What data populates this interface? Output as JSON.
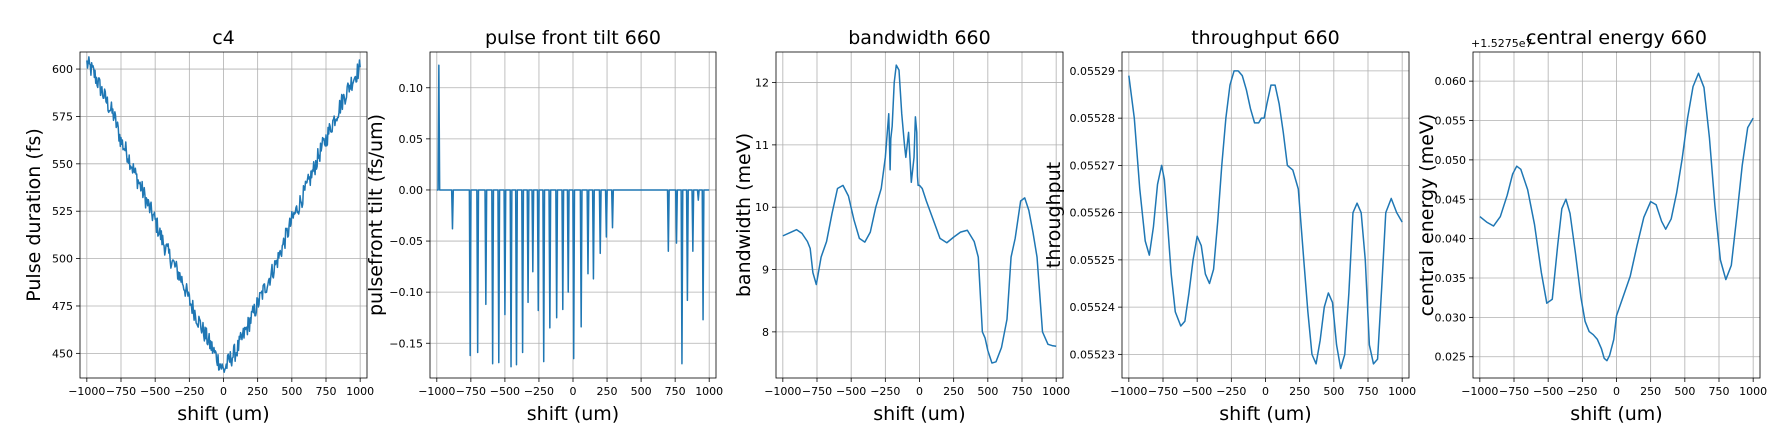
{
  "series_color": "#1f77b4",
  "grid": true,
  "chart_data": [
    {
      "type": "line",
      "title": "c4",
      "xlabel": "shift (um)",
      "ylabel": "Pulse duration (fs)",
      "xlim": [
        -1050,
        1050
      ],
      "ylim": [
        437,
        609
      ],
      "xticks": [
        -1000,
        -750,
        -500,
        -250,
        0,
        250,
        500,
        750,
        1000
      ],
      "xtick_labels": [
        "−1000",
        "−750",
        "−500",
        "−250",
        "0",
        "250",
        "500",
        "750",
        "1000"
      ],
      "yticks": [
        450,
        475,
        500,
        525,
        550,
        575,
        600
      ],
      "ytick_labels": [
        "450",
        "475",
        "500",
        "525",
        "550",
        "575",
        "600"
      ],
      "x": [
        -1000,
        -950,
        -900,
        -850,
        -800,
        -750,
        -700,
        -650,
        -600,
        -550,
        -500,
        -450,
        -400,
        -350,
        -300,
        -250,
        -200,
        -150,
        -100,
        -50,
        0,
        50,
        100,
        150,
        200,
        250,
        300,
        350,
        400,
        450,
        500,
        550,
        600,
        650,
        700,
        750,
        800,
        850,
        900,
        950,
        1000
      ],
      "y": [
        603,
        598,
        590,
        582,
        575,
        562,
        555,
        545,
        537,
        528,
        520,
        510,
        502,
        495,
        488,
        478,
        470,
        462,
        455,
        448,
        441,
        447,
        452,
        460,
        468,
        476,
        484,
        492,
        500,
        510,
        520,
        528,
        536,
        545,
        555,
        563,
        572,
        580,
        588,
        595,
        601
      ],
      "noise": 5
    },
    {
      "type": "line",
      "title": "pulse front tilt 660",
      "xlabel": "shift (um)",
      "ylabel": "pulsefront tilt (fs/um)",
      "xlim": [
        -1050,
        1050
      ],
      "ylim": [
        -0.184,
        0.135
      ],
      "xticks": [
        -1000,
        -750,
        -500,
        -250,
        0,
        250,
        500,
        750,
        1000
      ],
      "xtick_labels": [
        "−1000",
        "−750",
        "−500",
        "−250",
        "0",
        "250",
        "500",
        "750",
        "1000"
      ],
      "yticks": [
        -0.15,
        -0.1,
        -0.05,
        0.0,
        0.05,
        0.1
      ],
      "ytick_labels": [
        "−0.15",
        "−0.10",
        "−0.05",
        "0.00",
        "0.05",
        "0.10"
      ],
      "baseline": 0.0,
      "spikes": [
        {
          "x": -985,
          "y": 0.122
        },
        {
          "x": -885,
          "y": -0.038
        },
        {
          "x": -755,
          "y": -0.162
        },
        {
          "x": -700,
          "y": -0.159
        },
        {
          "x": -640,
          "y": -0.112
        },
        {
          "x": -590,
          "y": -0.17
        },
        {
          "x": -545,
          "y": -0.169
        },
        {
          "x": -500,
          "y": -0.122
        },
        {
          "x": -455,
          "y": -0.173
        },
        {
          "x": -415,
          "y": -0.171
        },
        {
          "x": -370,
          "y": -0.159
        },
        {
          "x": -330,
          "y": -0.11
        },
        {
          "x": -295,
          "y": -0.08
        },
        {
          "x": -255,
          "y": -0.118
        },
        {
          "x": -215,
          "y": -0.168
        },
        {
          "x": -170,
          "y": -0.135
        },
        {
          "x": -120,
          "y": -0.125
        },
        {
          "x": -75,
          "y": -0.117
        },
        {
          "x": -35,
          "y": -0.1
        },
        {
          "x": 5,
          "y": -0.165
        },
        {
          "x": 60,
          "y": -0.134
        },
        {
          "x": 110,
          "y": -0.082
        },
        {
          "x": 150,
          "y": -0.087
        },
        {
          "x": 200,
          "y": -0.062
        },
        {
          "x": 245,
          "y": -0.046
        },
        {
          "x": 290,
          "y": -0.037
        },
        {
          "x": 700,
          "y": -0.06
        },
        {
          "x": 760,
          "y": -0.052
        },
        {
          "x": 800,
          "y": -0.17
        },
        {
          "x": 840,
          "y": -0.108
        },
        {
          "x": 880,
          "y": -0.06
        },
        {
          "x": 920,
          "y": -0.01
        },
        {
          "x": 955,
          "y": -0.127
        }
      ],
      "x_end": [
        -1000,
        1000
      ]
    },
    {
      "type": "line",
      "title": "bandwidth 660",
      "xlabel": "shift (um)",
      "ylabel": "bandwidth (meV)",
      "xlim": [
        -1050,
        1050
      ],
      "ylim": [
        7.26,
        12.49
      ],
      "xticks": [
        -1000,
        -750,
        -500,
        -250,
        0,
        250,
        500,
        750,
        1000
      ],
      "xtick_labels": [
        "−1000",
        "−750",
        "−500",
        "−250",
        "0",
        "250",
        "500",
        "750",
        "1000"
      ],
      "yticks": [
        8,
        9,
        10,
        11,
        12
      ],
      "ytick_labels": [
        "8",
        "9",
        "10",
        "11",
        "12"
      ],
      "x": [
        -1000,
        -940,
        -900,
        -860,
        -820,
        -800,
        -780,
        -755,
        -720,
        -680,
        -640,
        -600,
        -560,
        -520,
        -480,
        -440,
        -400,
        -360,
        -320,
        -280,
        -250,
        -225,
        -215,
        -210,
        -200,
        -185,
        -170,
        -150,
        -130,
        -110,
        -100,
        -80,
        -60,
        -40,
        -30,
        -20,
        -15,
        -10,
        0,
        20,
        50,
        100,
        150,
        200,
        250,
        300,
        350,
        400,
        430,
        460,
        480,
        500,
        530,
        560,
        600,
        640,
        670,
        700,
        720,
        740,
        770,
        800,
        830,
        860,
        900,
        940,
        970,
        1000
      ],
      "y": [
        9.54,
        9.6,
        9.64,
        9.58,
        9.45,
        9.34,
        8.95,
        8.76,
        9.2,
        9.45,
        9.9,
        10.3,
        10.35,
        10.18,
        9.8,
        9.5,
        9.44,
        9.6,
        10.0,
        10.3,
        10.8,
        11.5,
        10.6,
        11.1,
        11.3,
        12.0,
        12.28,
        12.2,
        11.5,
        11.0,
        10.8,
        11.2,
        10.4,
        10.8,
        11.45,
        11.2,
        10.5,
        10.35,
        10.35,
        10.3,
        10.1,
        9.8,
        9.5,
        9.43,
        9.52,
        9.6,
        9.63,
        9.45,
        9.2,
        8.0,
        7.9,
        7.7,
        7.5,
        7.52,
        7.75,
        8.2,
        9.2,
        9.5,
        9.8,
        10.1,
        10.15,
        9.95,
        9.6,
        9.2,
        8.0,
        7.8,
        7.78,
        7.77
      ]
    },
    {
      "type": "line",
      "title": "throughput 660",
      "xlabel": "shift (um)",
      "ylabel": "throughput",
      "xlim": [
        -1050,
        1050
      ],
      "ylim": [
        0.055225,
        0.055294
      ],
      "xticks": [
        -1000,
        -750,
        -500,
        -250,
        0,
        250,
        500,
        750,
        1000
      ],
      "xtick_labels": [
        "−1000",
        "−750",
        "−500",
        "−250",
        "0",
        "250",
        "500",
        "750",
        "1000"
      ],
      "yticks": [
        0.05523,
        0.05524,
        0.05525,
        0.05526,
        0.05527,
        0.05528,
        0.05529
      ],
      "ytick_labels": [
        "0.05523",
        "0.05524",
        "0.05525",
        "0.05526",
        "0.05527",
        "0.05528",
        "0.05529"
      ],
      "x": [
        -1000,
        -960,
        -920,
        -880,
        -850,
        -820,
        -790,
        -760,
        -740,
        -720,
        -690,
        -660,
        -620,
        -590,
        -560,
        -530,
        -500,
        -470,
        -440,
        -410,
        -380,
        -350,
        -320,
        -290,
        -260,
        -230,
        -200,
        -170,
        -140,
        -110,
        -80,
        -50,
        -30,
        -10,
        10,
        40,
        70,
        100,
        130,
        160,
        200,
        240,
        280,
        310,
        340,
        370,
        400,
        430,
        460,
        490,
        520,
        550,
        580,
        610,
        640,
        670,
        700,
        730,
        760,
        790,
        820,
        850,
        880,
        920,
        960,
        1000
      ],
      "y": [
        0.055289,
        0.05528,
        0.055265,
        0.055254,
        0.055251,
        0.055257,
        0.055266,
        0.05527,
        0.055267,
        0.055259,
        0.055247,
        0.055239,
        0.055236,
        0.055237,
        0.055243,
        0.05525,
        0.055255,
        0.055253,
        0.055247,
        0.055245,
        0.055248,
        0.055258,
        0.05527,
        0.05528,
        0.055287,
        0.05529,
        0.05529,
        0.055289,
        0.055286,
        0.055282,
        0.055279,
        0.055279,
        0.05528,
        0.05528,
        0.055283,
        0.055287,
        0.055287,
        0.055283,
        0.055277,
        0.05527,
        0.055269,
        0.055265,
        0.05525,
        0.055239,
        0.05523,
        0.055228,
        0.055233,
        0.05524,
        0.055243,
        0.055241,
        0.055232,
        0.055227,
        0.05523,
        0.055243,
        0.05526,
        0.055262,
        0.05526,
        0.05525,
        0.055232,
        0.055228,
        0.055229,
        0.055244,
        0.05526,
        0.055263,
        0.05526,
        0.055258
      ]
    },
    {
      "type": "line",
      "title": "central energy 660",
      "xlabel": "shift (um)",
      "ylabel": "central energy (meV)",
      "offset_label": "+1.5275e7",
      "xlim": [
        -1050,
        1050
      ],
      "ylim": [
        0.0223,
        0.0637
      ],
      "xticks": [
        -1000,
        -750,
        -500,
        -250,
        0,
        250,
        500,
        750,
        1000
      ],
      "xtick_labels": [
        "−1000",
        "−750",
        "−500",
        "−250",
        "0",
        "250",
        "500",
        "750",
        "1000"
      ],
      "yticks": [
        0.025,
        0.03,
        0.035,
        0.04,
        0.045,
        0.05,
        0.055,
        0.06
      ],
      "ytick_labels": [
        "0.025",
        "0.030",
        "0.035",
        "0.040",
        "0.045",
        "0.050",
        "0.055",
        "0.060"
      ],
      "x": [
        -1000,
        -950,
        -900,
        -850,
        -800,
        -760,
        -730,
        -700,
        -650,
        -600,
        -550,
        -510,
        -470,
        -430,
        -400,
        -370,
        -340,
        -300,
        -260,
        -230,
        -200,
        -170,
        -140,
        -110,
        -90,
        -70,
        -50,
        -20,
        0,
        50,
        100,
        150,
        200,
        250,
        290,
        330,
        360,
        400,
        440,
        480,
        520,
        560,
        600,
        640,
        680,
        720,
        760,
        800,
        840,
        880,
        920,
        960,
        1000
      ],
      "y": [
        0.0428,
        0.0421,
        0.0416,
        0.0428,
        0.0455,
        0.0482,
        0.0492,
        0.0488,
        0.0462,
        0.0418,
        0.0357,
        0.0318,
        0.0323,
        0.0392,
        0.0438,
        0.045,
        0.0432,
        0.0381,
        0.0325,
        0.0295,
        0.0282,
        0.0278,
        0.0272,
        0.026,
        0.0248,
        0.0245,
        0.0252,
        0.0272,
        0.0302,
        0.0327,
        0.0352,
        0.0391,
        0.0427,
        0.0447,
        0.0443,
        0.0422,
        0.0412,
        0.0425,
        0.0458,
        0.0501,
        0.0553,
        0.0593,
        0.061,
        0.0592,
        0.0528,
        0.0442,
        0.0373,
        0.0348,
        0.0366,
        0.0428,
        0.0493,
        0.0541,
        0.0553
      ]
    }
  ]
}
